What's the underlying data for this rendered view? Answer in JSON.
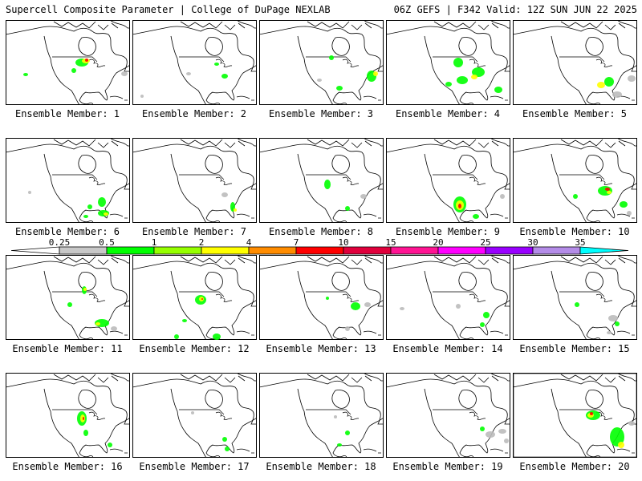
{
  "header": {
    "title": "Supercell Composite Parameter | College of DuPage NEXLAB",
    "run_info": "06Z GEFS | F342 Valid: 12Z SUN JUN 22 2025"
  },
  "member_label_prefix": "Ensemble Member:",
  "members": [
    {
      "number": "1",
      "blobs": [
        [
          95,
          78,
          8,
          5,
          "#00ff00"
        ],
        [
          100,
          76,
          5,
          3,
          "#ffff00"
        ],
        [
          101,
          75,
          2,
          2,
          "#ff0000"
        ],
        [
          85,
          88,
          3,
          3,
          "#00ff00"
        ],
        [
          25,
          93,
          3,
          2,
          "#00ff00"
        ],
        [
          148,
          92,
          4,
          3,
          "#bbbbbb"
        ]
      ]
    },
    {
      "number": "2",
      "blobs": [
        [
          105,
          80,
          3,
          2,
          "#00ff00"
        ],
        [
          12,
          120,
          2,
          2,
          "#bbbbbb"
        ],
        [
          70,
          92,
          3,
          2,
          "#bbbbbb"
        ],
        [
          115,
          95,
          4,
          3,
          "#00ff00"
        ]
      ]
    },
    {
      "number": "3",
      "blobs": [
        [
          90,
          72,
          3,
          3,
          "#00ff00"
        ],
        [
          140,
          95,
          6,
          7,
          "#00ff00"
        ],
        [
          145,
          92,
          3,
          3,
          "#ffff00"
        ],
        [
          100,
          110,
          4,
          3,
          "#00ff00"
        ],
        [
          75,
          100,
          3,
          2,
          "#bbbbbb"
        ]
      ]
    },
    {
      "number": "4",
      "blobs": [
        [
          90,
          78,
          6,
          6,
          "#00ff00"
        ],
        [
          115,
          90,
          8,
          6,
          "#00ff00"
        ],
        [
          110,
          96,
          4,
          3,
          "#ffff00"
        ],
        [
          95,
          100,
          7,
          5,
          "#00ff00"
        ],
        [
          78,
          105,
          4,
          3,
          "#00ff00"
        ],
        [
          140,
          112,
          5,
          4,
          "#00ff00"
        ]
      ]
    },
    {
      "number": "5",
      "blobs": [
        [
          120,
          102,
          6,
          6,
          "#00ff00"
        ],
        [
          110,
          106,
          5,
          4,
          "#ffff00"
        ],
        [
          130,
          118,
          6,
          4,
          "#bbbbbb"
        ],
        [
          148,
          98,
          5,
          4,
          "#bbbbbb"
        ]
      ]
    },
    {
      "number": "6",
      "blobs": [
        [
          120,
          252,
          5,
          6,
          "#00ff00"
        ],
        [
          122,
          266,
          7,
          4,
          "#00ff00"
        ],
        [
          125,
          267,
          3,
          2,
          "#ffff00"
        ],
        [
          105,
          258,
          3,
          3,
          "#00ff00"
        ],
        [
          100,
          270,
          3,
          2,
          "#00ff00"
        ],
        [
          30,
          240,
          2,
          2,
          "#bbbbbb"
        ]
      ]
    },
    {
      "number": "7",
      "blobs": [
        [
          125,
          258,
          3,
          6,
          "#00ff00"
        ],
        [
          128,
          262,
          2,
          2,
          "#ffff00"
        ],
        [
          115,
          243,
          4,
          3,
          "#bbbbbb"
        ]
      ]
    },
    {
      "number": "8",
      "blobs": [
        [
          85,
          230,
          4,
          6,
          "#00ff00"
        ],
        [
          110,
          260,
          3,
          3,
          "#00ff00"
        ],
        [
          130,
          245,
          4,
          3,
          "#bbbbbb"
        ]
      ]
    },
    {
      "number": "9",
      "blobs": [
        [
          92,
          255,
          8,
          10,
          "#00ff00"
        ],
        [
          92,
          256,
          5,
          6,
          "#ffff00"
        ],
        [
          92,
          257,
          2,
          3,
          "#ff0000"
        ],
        [
          112,
          270,
          4,
          3,
          "#00ff00"
        ],
        [
          145,
          245,
          3,
          3,
          "#bbbbbb"
        ]
      ]
    },
    {
      "number": "10",
      "blobs": [
        [
          115,
          238,
          9,
          6,
          "#00ff00"
        ],
        [
          118,
          236,
          3,
          2,
          "#ff0000"
        ],
        [
          120,
          240,
          3,
          2,
          "#ffff00"
        ],
        [
          78,
          245,
          3,
          3,
          "#00ff00"
        ],
        [
          138,
          255,
          5,
          4,
          "#00ff00"
        ],
        [
          145,
          266,
          3,
          3,
          "#bbbbbb"
        ]
      ]
    },
    {
      "number": "11",
      "blobs": [
        [
          98,
          362,
          3,
          5,
          "#00ff00"
        ],
        [
          99,
          361,
          2,
          2,
          "#ffff00"
        ],
        [
          120,
          403,
          9,
          5,
          "#00ff00"
        ],
        [
          115,
          404,
          3,
          2,
          "#ffff00"
        ],
        [
          135,
          410,
          4,
          3,
          "#bbbbbb"
        ],
        [
          80,
          380,
          3,
          3,
          "#00ff00"
        ]
      ]
    },
    {
      "number": "12",
      "blobs": [
        [
          85,
          374,
          7,
          6,
          "#00ff00"
        ],
        [
          86,
          373,
          3,
          3,
          "#ffff00"
        ],
        [
          87,
          373,
          1,
          1,
          "#ff0000"
        ],
        [
          105,
          420,
          5,
          4,
          "#00ff00"
        ],
        [
          65,
          400,
          3,
          2,
          "#00ff00"
        ],
        [
          55,
          420,
          3,
          3,
          "#00ff00"
        ]
      ]
    },
    {
      "number": "13",
      "blobs": [
        [
          120,
          382,
          6,
          5,
          "#00ff00"
        ],
        [
          135,
          380,
          4,
          3,
          "#bbbbbb"
        ],
        [
          85,
          372,
          2,
          2,
          "#00ff00"
        ],
        [
          110,
          410,
          3,
          3,
          "#bbbbbb"
        ]
      ]
    },
    {
      "number": "14",
      "blobs": [
        [
          90,
          382,
          3,
          3,
          "#bbbbbb"
        ],
        [
          125,
          393,
          4,
          4,
          "#00ff00"
        ],
        [
          120,
          405,
          3,
          3,
          "#00ff00"
        ],
        [
          20,
          385,
          3,
          2,
          "#bbbbbb"
        ]
      ]
    },
    {
      "number": "15",
      "blobs": [
        [
          80,
          380,
          3,
          3,
          "#00ff00"
        ],
        [
          125,
          397,
          6,
          4,
          "#bbbbbb"
        ],
        [
          130,
          404,
          3,
          3,
          "#00ff00"
        ],
        [
          120,
          415,
          3,
          2,
          "#bbbbbb"
        ]
      ]
    },
    {
      "number": "16",
      "blobs": [
        [
          95,
          522,
          6,
          9,
          "#00ff00"
        ],
        [
          96,
          522,
          3,
          5,
          "#ffff00"
        ],
        [
          97,
          522,
          1,
          2,
          "#ff0000"
        ],
        [
          100,
          540,
          3,
          4,
          "#00ff00"
        ],
        [
          130,
          555,
          3,
          3,
          "#00ff00"
        ]
      ]
    },
    {
      "number": "17",
      "blobs": [
        [
          115,
          548,
          3,
          3,
          "#00ff00"
        ],
        [
          118,
          560,
          3,
          3,
          "#00ff00"
        ],
        [
          75,
          515,
          2,
          2,
          "#bbbbbb"
        ]
      ]
    },
    {
      "number": "18",
      "blobs": [
        [
          110,
          540,
          3,
          3,
          "#00ff00"
        ],
        [
          100,
          555,
          3,
          2,
          "#00ff00"
        ],
        [
          95,
          520,
          2,
          2,
          "#bbbbbb"
        ]
      ]
    },
    {
      "number": "19",
      "blobs": [
        [
          130,
          542,
          6,
          4,
          "#bbbbbb"
        ],
        [
          145,
          538,
          5,
          3,
          "#bbbbbb"
        ],
        [
          120,
          535,
          3,
          3,
          "#00ff00"
        ],
        [
          150,
          550,
          3,
          3,
          "#bbbbbb"
        ]
      ]
    },
    {
      "number": "20",
      "blobs": [
        [
          100,
          518,
          9,
          6,
          "#00ff00"
        ],
        [
          97,
          518,
          4,
          3,
          "#ffff00"
        ],
        [
          98,
          516,
          2,
          2,
          "#ff0000"
        ],
        [
          130,
          545,
          9,
          12,
          "#00ff00"
        ],
        [
          135,
          555,
          4,
          4,
          "#ffff00"
        ],
        [
          148,
          528,
          4,
          3,
          "#bbbbbb"
        ]
      ]
    }
  ],
  "colorbar": {
    "ticks": [
      "0.25",
      "0.5",
      "1",
      "2",
      "4",
      "7",
      "10",
      "15",
      "20",
      "25",
      "30",
      "35"
    ],
    "colors": [
      "#c8c8c8",
      "#00ff00",
      "#96ff00",
      "#ffff00",
      "#ff8c00",
      "#ff0000",
      "#e0003c",
      "#ff1493",
      "#ff00ff",
      "#9900ff",
      "#b48ce8",
      "#00ffff"
    ]
  },
  "highlighted_member": "20"
}
